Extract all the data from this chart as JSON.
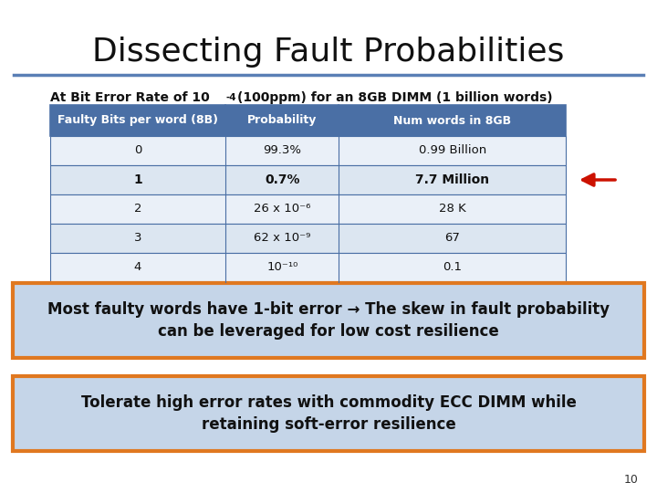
{
  "title": "Dissecting Fault Probabilities",
  "title_fontsize": 26,
  "header": [
    "Faulty Bits per word (8B)",
    "Probability",
    "Num words in 8GB"
  ],
  "rows": [
    [
      "0",
      "99.3%",
      "0.99 Billion"
    ],
    [
      "1",
      "0.7%",
      "7.7 Million"
    ],
    [
      "2",
      "26 x 10⁻⁶",
      "28 K"
    ],
    [
      "3",
      "62 x 10⁻⁹",
      "67"
    ],
    [
      "4",
      "10⁻¹⁰",
      "0.1"
    ]
  ],
  "header_bg": "#4a6fa5",
  "header_fg": "#ffffff",
  "row_bg_even": "#dce6f1",
  "row_bg_odd": "#eaf0f8",
  "table_border": "#4a6fa5",
  "arrow_row": 1,
  "box1_text": "Most faulty words have 1-bit error → The skew in fault probability\ncan be leveraged for low cost resilience",
  "box2_text": "Tolerate high error rates with commodity ECC DIMM while\nretaining soft-error resilience",
  "box_bg": "#c5d5e8",
  "box_border": "#e07820",
  "title_line_color": "#5a7fb5",
  "page_number": "10",
  "background_color": "#ffffff",
  "subtitle_text1": "At Bit Error Rate of 10",
  "subtitle_sup": "-4",
  "subtitle_text2": "(100ppm) for an 8GB DIMM (1 billion words)"
}
